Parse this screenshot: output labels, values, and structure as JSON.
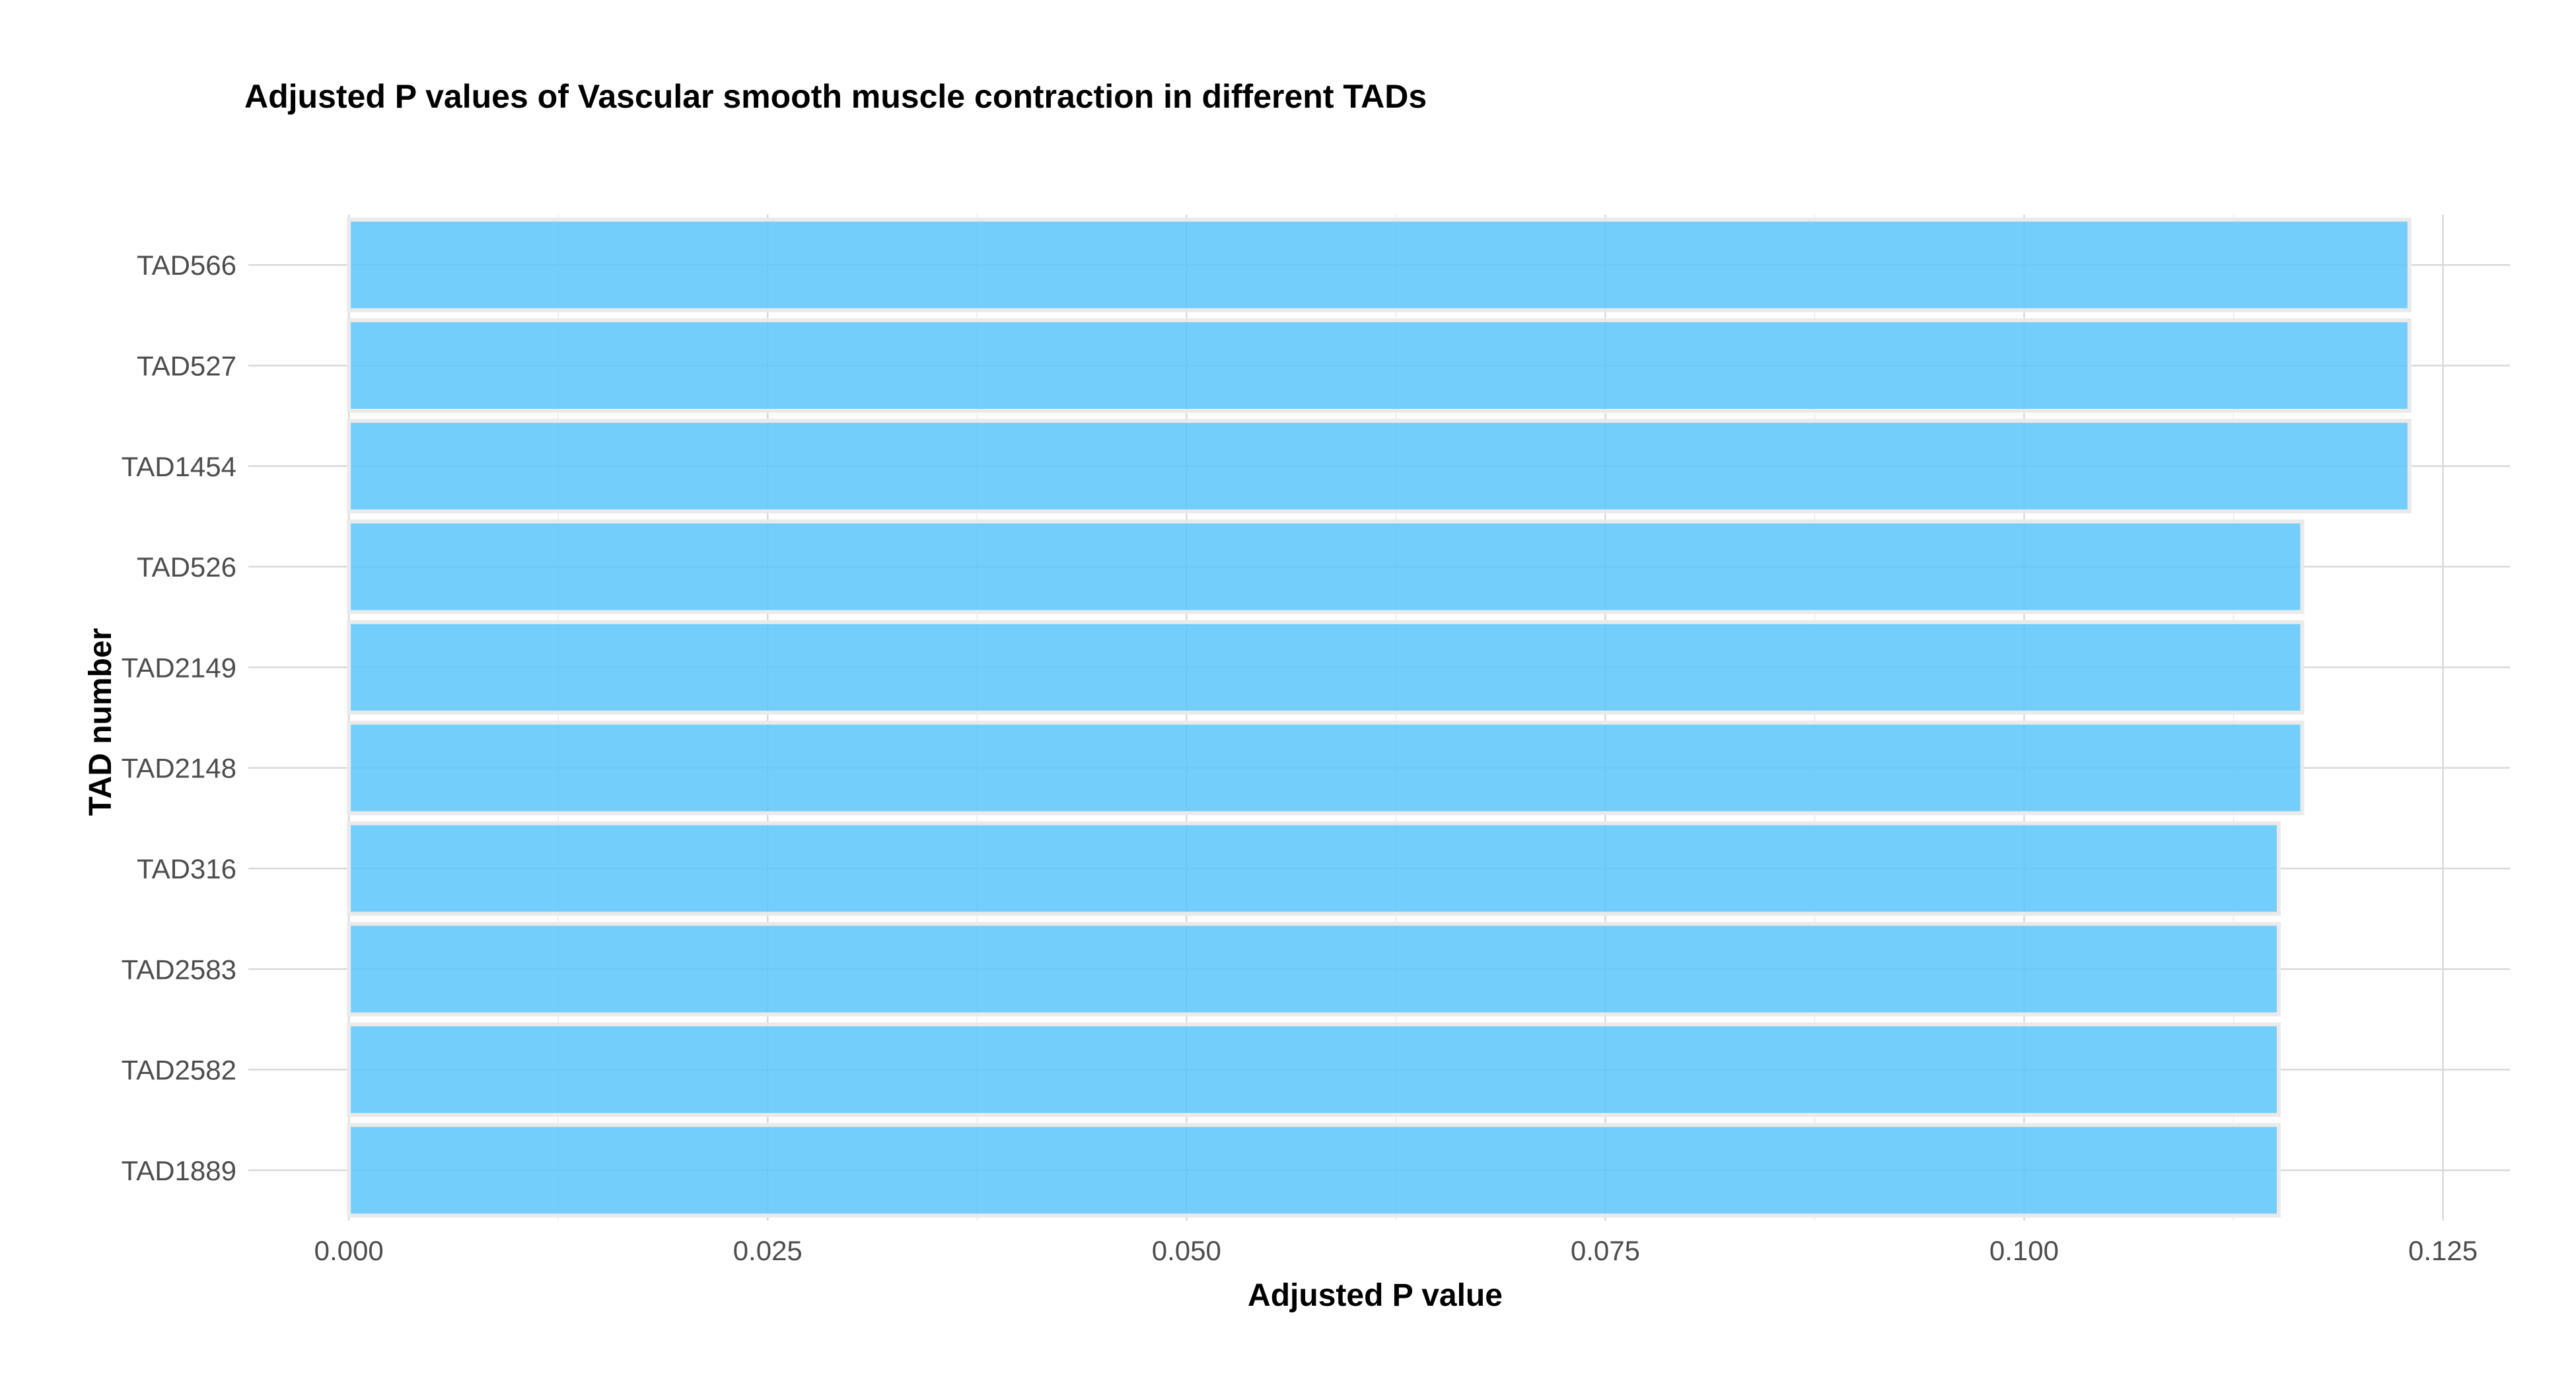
{
  "chart_data": {
    "type": "bar",
    "orientation": "horizontal",
    "title": "Adjusted P values of Vascular smooth muscle contraction in different TADs",
    "xlabel": "Adjusted P value",
    "ylabel": "TAD number",
    "categories": [
      "TAD566",
      "TAD527",
      "TAD1454",
      "TAD526",
      "TAD2149",
      "TAD2148",
      "TAD316",
      "TAD2583",
      "TAD2582",
      "TAD1889"
    ],
    "values": [
      0.123,
      0.123,
      0.123,
      0.1166,
      0.1166,
      0.1166,
      0.1152,
      0.1152,
      0.1152,
      0.1152
    ],
    "xlim": [
      -0.006,
      0.129
    ],
    "xticks": [
      0.0,
      0.025,
      0.05,
      0.075,
      0.1,
      0.125
    ],
    "xtick_labels": [
      "0.000",
      "0.025",
      "0.050",
      "0.075",
      "0.100",
      "0.125"
    ],
    "bar_color": "#5bc5fb",
    "grid": true,
    "legend": "none"
  }
}
